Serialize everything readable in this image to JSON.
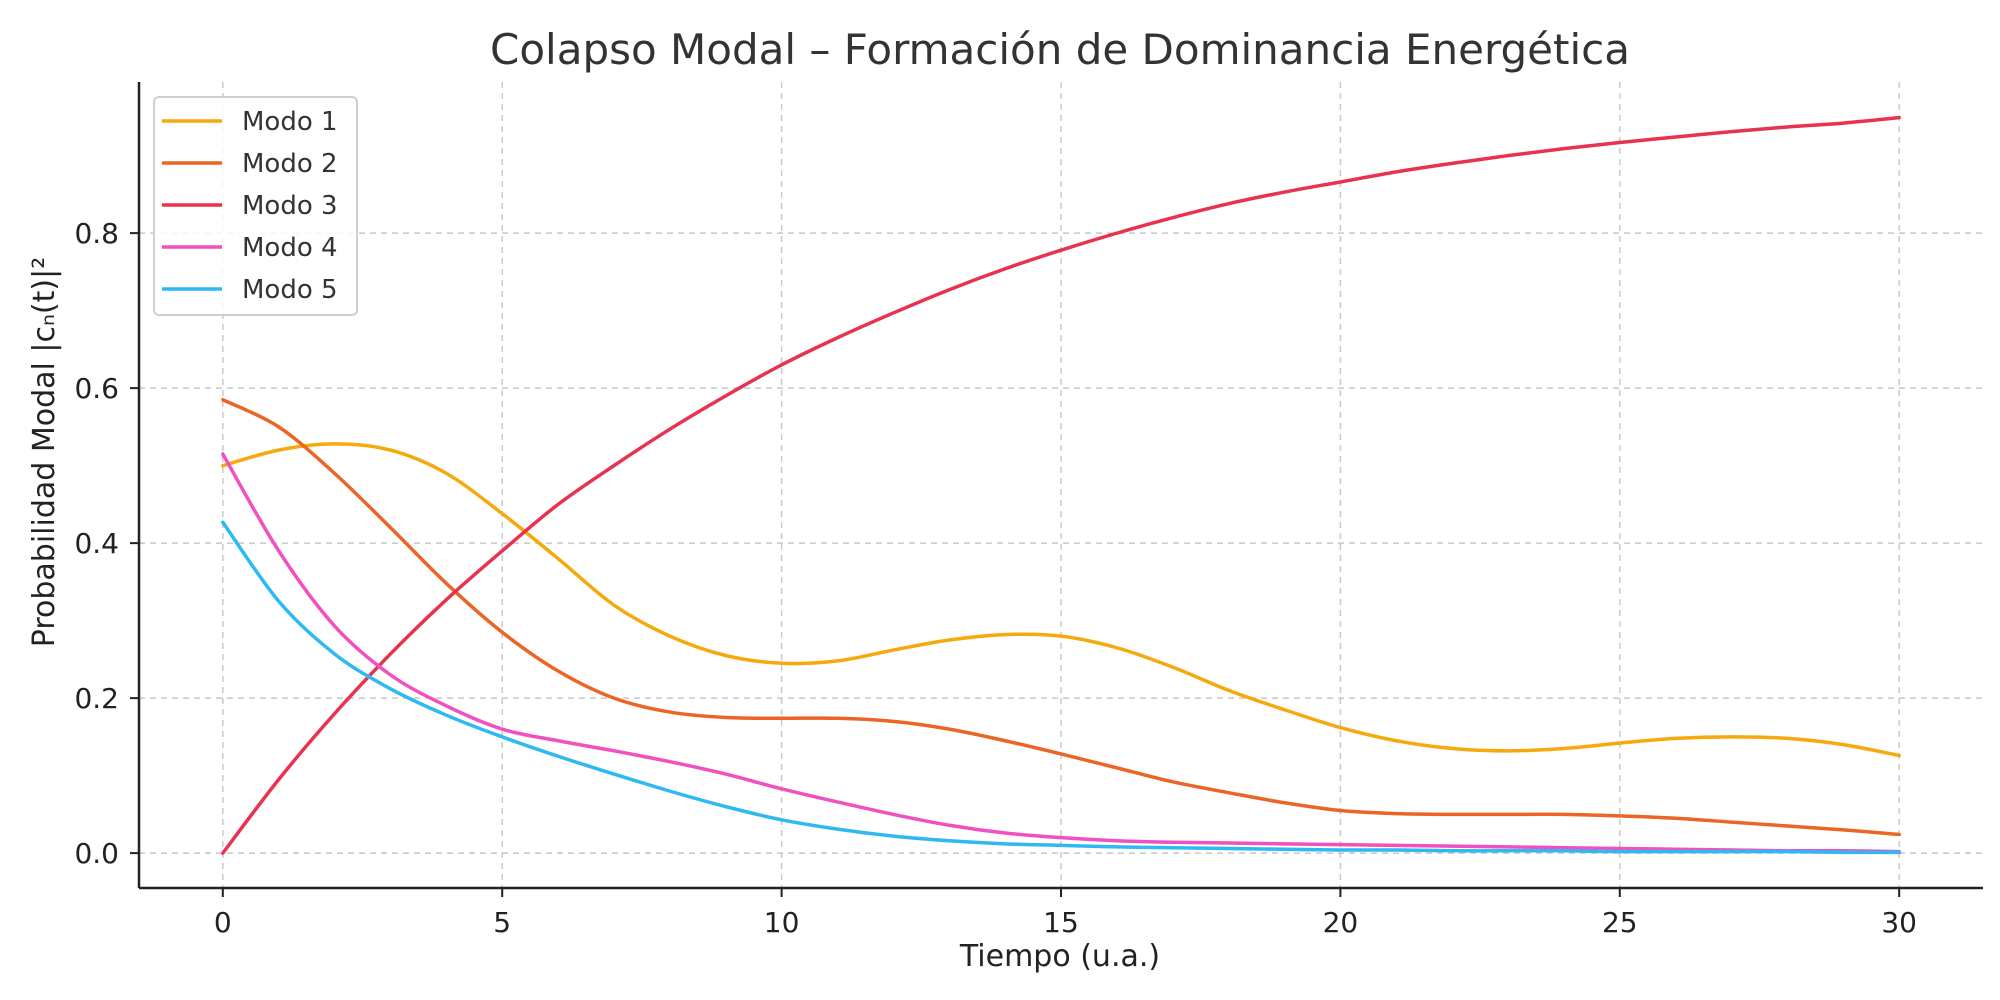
{
  "chart_data": {
    "type": "line",
    "title": "Colapso Modal – Formación de Dominancia Energética",
    "xlabel": "Tiempo (u.a.)",
    "ylabel": "Probabilidad Modal |cₙ(t)|²",
    "xlim": [
      -1.5,
      31.5
    ],
    "ylim": [
      -0.045,
      0.995
    ],
    "x_ticks": [
      0,
      5,
      10,
      15,
      20,
      25,
      30
    ],
    "y_ticks": [
      0.0,
      0.2,
      0.4,
      0.6,
      0.8
    ],
    "y_tick_labels": [
      "0.0",
      "0.2",
      "0.4",
      "0.6",
      "0.8"
    ],
    "grid": true,
    "legend_position": "top-left",
    "x": [
      0,
      1,
      2,
      3,
      4,
      5,
      6,
      7,
      8,
      9,
      10,
      11,
      12,
      13,
      14,
      15,
      16,
      17,
      18,
      19,
      20,
      21,
      22,
      23,
      24,
      25,
      26,
      27,
      28,
      29,
      30
    ],
    "series": [
      {
        "name": "Modo 1",
        "color": "#F5A90D",
        "values": [
          0.5,
          0.52,
          0.528,
          0.52,
          0.49,
          0.438,
          0.38,
          0.32,
          0.28,
          0.255,
          0.245,
          0.248,
          0.262,
          0.275,
          0.282,
          0.28,
          0.265,
          0.24,
          0.21,
          0.185,
          0.162,
          0.145,
          0.135,
          0.132,
          0.135,
          0.142,
          0.148,
          0.15,
          0.148,
          0.14,
          0.126
        ]
      },
      {
        "name": "Modo 2",
        "color": "#EB6525",
        "values": [
          0.585,
          0.55,
          0.49,
          0.42,
          0.348,
          0.285,
          0.235,
          0.2,
          0.182,
          0.175,
          0.174,
          0.174,
          0.17,
          0.16,
          0.145,
          0.128,
          0.11,
          0.092,
          0.078,
          0.065,
          0.055,
          0.051,
          0.05,
          0.05,
          0.05,
          0.048,
          0.045,
          0.04,
          0.035,
          0.03,
          0.024
        ]
      },
      {
        "name": "Modo 3",
        "color": "#E8324F",
        "values": [
          0.0,
          0.095,
          0.18,
          0.257,
          0.327,
          0.39,
          0.45,
          0.5,
          0.547,
          0.59,
          0.63,
          0.665,
          0.697,
          0.727,
          0.754,
          0.778,
          0.8,
          0.82,
          0.838,
          0.853,
          0.866,
          0.879,
          0.89,
          0.9,
          0.909,
          0.917,
          0.924,
          0.931,
          0.937,
          0.942,
          0.949
        ]
      },
      {
        "name": "Modo 4",
        "color": "#F050C0",
        "values": [
          0.515,
          0.39,
          0.293,
          0.23,
          0.19,
          0.16,
          0.145,
          0.132,
          0.118,
          0.102,
          0.083,
          0.066,
          0.05,
          0.036,
          0.026,
          0.02,
          0.016,
          0.014,
          0.013,
          0.012,
          0.011,
          0.01,
          0.009,
          0.008,
          0.007,
          0.006,
          0.005,
          0.004,
          0.003,
          0.003,
          0.002
        ]
      },
      {
        "name": "Modo 5",
        "color": "#2EB9F3",
        "values": [
          0.427,
          0.325,
          0.257,
          0.212,
          0.178,
          0.15,
          0.125,
          0.102,
          0.08,
          0.06,
          0.043,
          0.031,
          0.022,
          0.016,
          0.012,
          0.01,
          0.008,
          0.007,
          0.006,
          0.005,
          0.004,
          0.004,
          0.003,
          0.003,
          0.003,
          0.002,
          0.002,
          0.002,
          0.002,
          0.001,
          0.001
        ]
      }
    ]
  }
}
